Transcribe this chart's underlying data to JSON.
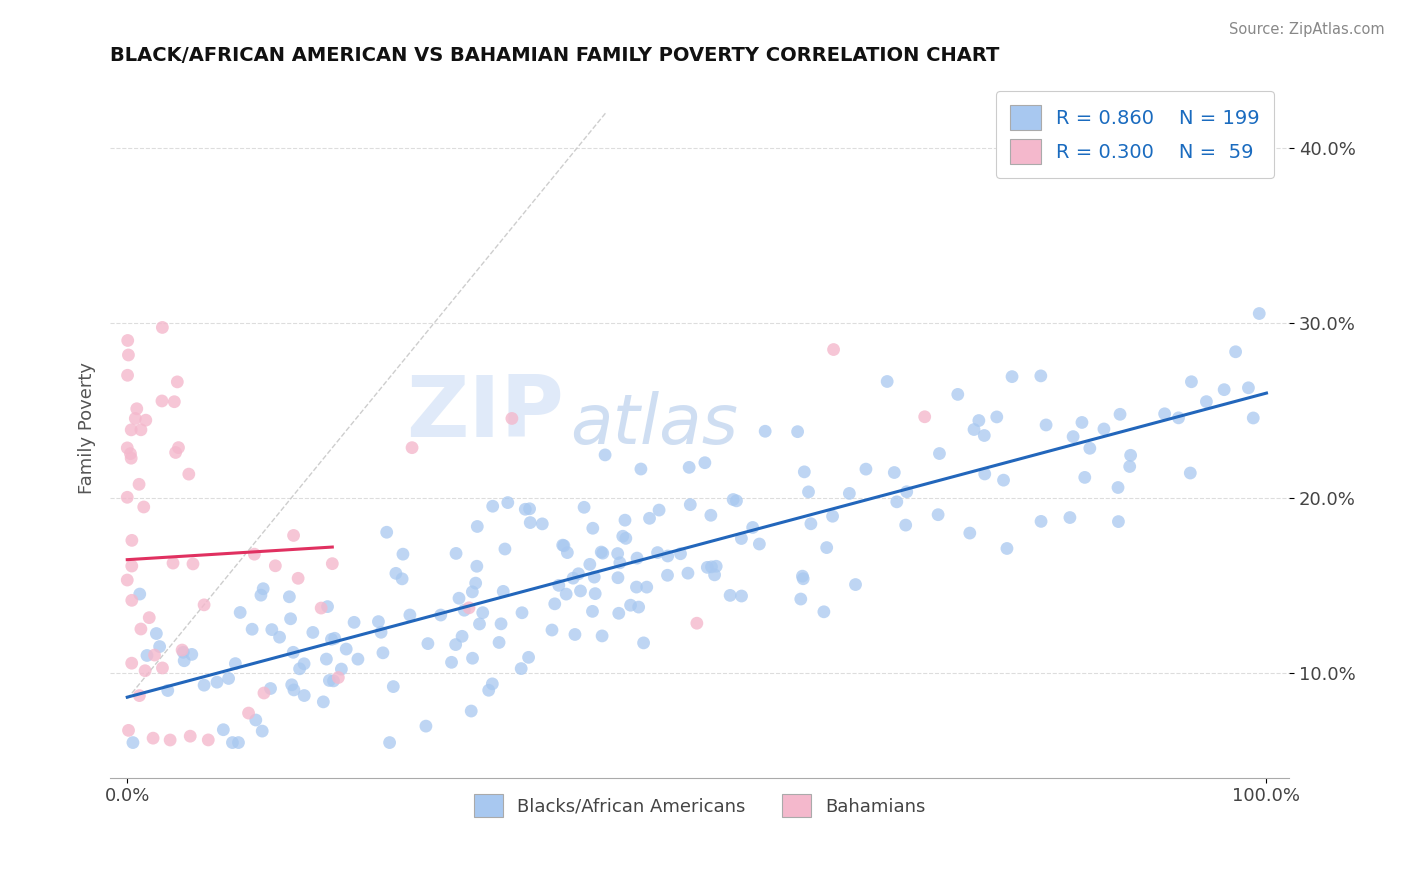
{
  "title": "BLACK/AFRICAN AMERICAN VS BAHAMIAN FAMILY POVERTY CORRELATION CHART",
  "source": "Source: ZipAtlas.com",
  "ylabel": "Family Poverty",
  "legend_entries": [
    {
      "label": "Blacks/African Americans",
      "color": "#a8c8f0",
      "R": "0.860",
      "N": "199"
    },
    {
      "label": "Bahamians",
      "color": "#f4b8cc",
      "R": "0.300",
      "N": "59"
    }
  ],
  "blue_line_color": "#2266bb",
  "pink_line_color": "#e03060",
  "blue_scatter_color": "#a8c8f0",
  "pink_scatter_color": "#f4b8cc",
  "watermark_zip": "ZIP",
  "watermark_atlas": "atlas",
  "grid_color": "#dddddd",
  "background_color": "#ffffff",
  "blue_seed": 10,
  "pink_seed": 20
}
